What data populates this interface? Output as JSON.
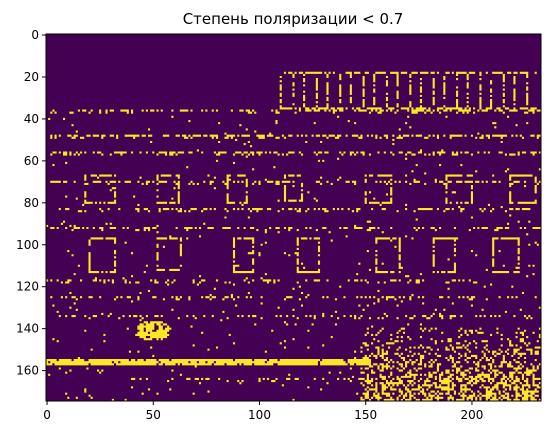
{
  "chart_data": {
    "type": "heatmap",
    "title": "Степень поляризации < 0.7",
    "xlabel": "",
    "ylabel": "",
    "colormap": "viridis",
    "binary": true,
    "colors": {
      "false": "#440154",
      "true": "#fde725"
    },
    "image_shape": {
      "rows": 175,
      "cols": 233
    },
    "xlim": [
      -0.5,
      232.5
    ],
    "ylim": [
      174.5,
      -0.5
    ],
    "y_inverted": true,
    "xticks": [
      0,
      50,
      100,
      150,
      200
    ],
    "xtick_labels": [
      "0",
      "50",
      "100",
      "150",
      "200"
    ],
    "yticks": [
      0,
      20,
      40,
      60,
      80,
      100,
      120,
      140,
      160
    ],
    "ytick_labels": [
      "0",
      "20",
      "40",
      "60",
      "80",
      "100",
      "120",
      "140",
      "160"
    ],
    "grid": false,
    "features": {
      "text_top_right": {
        "rows": [
          18,
          35
        ],
        "cols": [
          110,
          230
        ],
        "density": 0.35
      },
      "dashed_hlines": [
        {
          "row": 36,
          "cols": [
            2,
            232
          ],
          "density": 0.45
        },
        {
          "row": 48,
          "cols": [
            2,
            232
          ],
          "density": 0.55
        },
        {
          "row": 56,
          "cols": [
            2,
            232
          ],
          "density": 0.5
        },
        {
          "row": 70,
          "cols": [
            2,
            232
          ],
          "density": 0.35
        },
        {
          "row": 83,
          "cols": [
            2,
            232
          ],
          "density": 0.35
        },
        {
          "row": 92,
          "cols": [
            2,
            232
          ],
          "density": 0.3
        },
        {
          "row": 117,
          "cols": [
            2,
            200
          ],
          "density": 0.3
        },
        {
          "row": 125,
          "cols": [
            2,
            232
          ],
          "density": 0.25
        },
        {
          "row": 134,
          "cols": [
            2,
            232
          ],
          "density": 0.25
        },
        {
          "row": 164,
          "cols": [
            40,
            150
          ],
          "density": 0.25
        }
      ],
      "squares_row1": [
        [
          18,
          67,
          32,
          80
        ],
        [
          52,
          67,
          62,
          80
        ],
        [
          85,
          67,
          94,
          80
        ],
        [
          112,
          67,
          120,
          79
        ],
        [
          150,
          67,
          162,
          80
        ],
        [
          188,
          67,
          200,
          80
        ],
        [
          218,
          67,
          230,
          80
        ]
      ],
      "squares_row2": [
        [
          20,
          97,
          32,
          113
        ],
        [
          52,
          97,
          63,
          112
        ],
        [
          88,
          97,
          97,
          113
        ],
        [
          118,
          97,
          128,
          113
        ],
        [
          155,
          97,
          166,
          113
        ],
        [
          182,
          97,
          192,
          113
        ],
        [
          210,
          97,
          222,
          113
        ]
      ],
      "bright_band": {
        "row": 155,
        "thickness": 3,
        "cols": [
          0,
          152
        ]
      },
      "blob": {
        "row": 141,
        "col": 50,
        "radius": 5
      },
      "noise_patch": {
        "rows": [
          140,
          175
        ],
        "cols": [
          148,
          232
        ],
        "density": 0.45
      },
      "background_noise": 0.015,
      "seed": 7
    }
  }
}
